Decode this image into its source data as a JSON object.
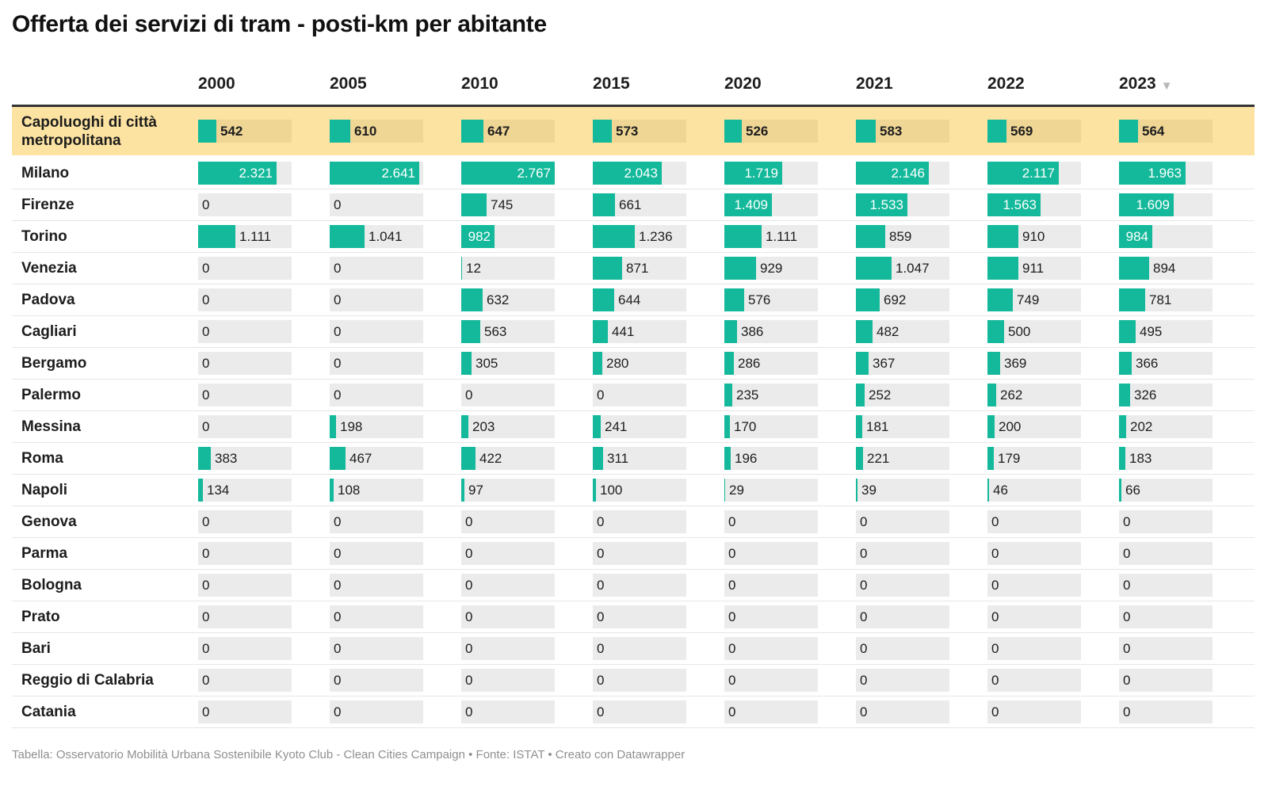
{
  "title": "Offerta dei servizi di tram - posti-km per abitante",
  "footer": "Tabella: Osservatorio Mobilità Urbana Sostenibile Kyoto Club - Clean Cities Campaign • Fonte: ISTAT • Creato con Datawrapper",
  "sort_icon": "sort-descending-icon",
  "colors": {
    "bar": "#13b99a",
    "track": "#ebebeb",
    "highlight_background": "#fce3a1",
    "highlight_track": "#efd695"
  },
  "chart_data": {
    "type": "table",
    "title": "Offerta dei servizi di tram - posti-km per abitante",
    "sorted_by": "2023",
    "sort_direction": "descending",
    "bar_max": 2767,
    "columns": [
      "2000",
      "2005",
      "2010",
      "2015",
      "2020",
      "2021",
      "2022",
      "2023"
    ],
    "highlight_row": {
      "label": "Capoluoghi di città metropolitana",
      "values": [
        542,
        610,
        647,
        573,
        526,
        583,
        569,
        564
      ],
      "display": [
        "542",
        "610",
        "647",
        "573",
        "526",
        "583",
        "569",
        "564"
      ]
    },
    "rows": [
      {
        "label": "Milano",
        "values": [
          2321,
          2641,
          2767,
          2043,
          1719,
          2146,
          2117,
          1963
        ],
        "display": [
          "2.321",
          "2.641",
          "2.767",
          "2.043",
          "1.719",
          "2.146",
          "2.117",
          "1.963"
        ]
      },
      {
        "label": "Firenze",
        "values": [
          0,
          0,
          745,
          661,
          1409,
          1533,
          1563,
          1609
        ],
        "display": [
          "0",
          "0",
          "745",
          "661",
          "1.409",
          "1.533",
          "1.563",
          "1.609"
        ]
      },
      {
        "label": "Torino",
        "values": [
          1111,
          1041,
          982,
          1236,
          1111,
          859,
          910,
          984
        ],
        "display": [
          "1.111",
          "1.041",
          "982",
          "1.236",
          "1.111",
          "859",
          "910",
          "984"
        ]
      },
      {
        "label": "Venezia",
        "values": [
          0,
          0,
          12,
          871,
          929,
          1047,
          911,
          894
        ],
        "display": [
          "0",
          "0",
          "12",
          "871",
          "929",
          "1.047",
          "911",
          "894"
        ]
      },
      {
        "label": "Padova",
        "values": [
          0,
          0,
          632,
          644,
          576,
          692,
          749,
          781
        ],
        "display": [
          "0",
          "0",
          "632",
          "644",
          "576",
          "692",
          "749",
          "781"
        ]
      },
      {
        "label": "Cagliari",
        "values": [
          0,
          0,
          563,
          441,
          386,
          482,
          500,
          495
        ],
        "display": [
          "0",
          "0",
          "563",
          "441",
          "386",
          "482",
          "500",
          "495"
        ]
      },
      {
        "label": "Bergamo",
        "values": [
          0,
          0,
          305,
          280,
          286,
          367,
          369,
          366
        ],
        "display": [
          "0",
          "0",
          "305",
          "280",
          "286",
          "367",
          "369",
          "366"
        ]
      },
      {
        "label": "Palermo",
        "values": [
          0,
          0,
          0,
          0,
          235,
          252,
          262,
          326
        ],
        "display": [
          "0",
          "0",
          "0",
          "0",
          "235",
          "252",
          "262",
          "326"
        ]
      },
      {
        "label": "Messina",
        "values": [
          0,
          198,
          203,
          241,
          170,
          181,
          200,
          202
        ],
        "display": [
          "0",
          "198",
          "203",
          "241",
          "170",
          "181",
          "200",
          "202"
        ]
      },
      {
        "label": "Roma",
        "values": [
          383,
          467,
          422,
          311,
          196,
          221,
          179,
          183
        ],
        "display": [
          "383",
          "467",
          "422",
          "311",
          "196",
          "221",
          "179",
          "183"
        ]
      },
      {
        "label": "Napoli",
        "values": [
          134,
          108,
          97,
          100,
          29,
          39,
          46,
          66
        ],
        "display": [
          "134",
          "108",
          "97",
          "100",
          "29",
          "39",
          "46",
          "66"
        ]
      },
      {
        "label": "Genova",
        "values": [
          0,
          0,
          0,
          0,
          0,
          0,
          0,
          0
        ],
        "display": [
          "0",
          "0",
          "0",
          "0",
          "0",
          "0",
          "0",
          "0"
        ]
      },
      {
        "label": "Parma",
        "values": [
          0,
          0,
          0,
          0,
          0,
          0,
          0,
          0
        ],
        "display": [
          "0",
          "0",
          "0",
          "0",
          "0",
          "0",
          "0",
          "0"
        ]
      },
      {
        "label": "Bologna",
        "values": [
          0,
          0,
          0,
          0,
          0,
          0,
          0,
          0
        ],
        "display": [
          "0",
          "0",
          "0",
          "0",
          "0",
          "0",
          "0",
          "0"
        ]
      },
      {
        "label": "Prato",
        "values": [
          0,
          0,
          0,
          0,
          0,
          0,
          0,
          0
        ],
        "display": [
          "0",
          "0",
          "0",
          "0",
          "0",
          "0",
          "0",
          "0"
        ]
      },
      {
        "label": "Bari",
        "values": [
          0,
          0,
          0,
          0,
          0,
          0,
          0,
          0
        ],
        "display": [
          "0",
          "0",
          "0",
          "0",
          "0",
          "0",
          "0",
          "0"
        ]
      },
      {
        "label": "Reggio di Calabria",
        "values": [
          0,
          0,
          0,
          0,
          0,
          0,
          0,
          0
        ],
        "display": [
          "0",
          "0",
          "0",
          "0",
          "0",
          "0",
          "0",
          "0"
        ]
      },
      {
        "label": "Catania",
        "values": [
          0,
          0,
          0,
          0,
          0,
          0,
          0,
          0
        ],
        "display": [
          "0",
          "0",
          "0",
          "0",
          "0",
          "0",
          "0",
          "0"
        ]
      }
    ]
  }
}
